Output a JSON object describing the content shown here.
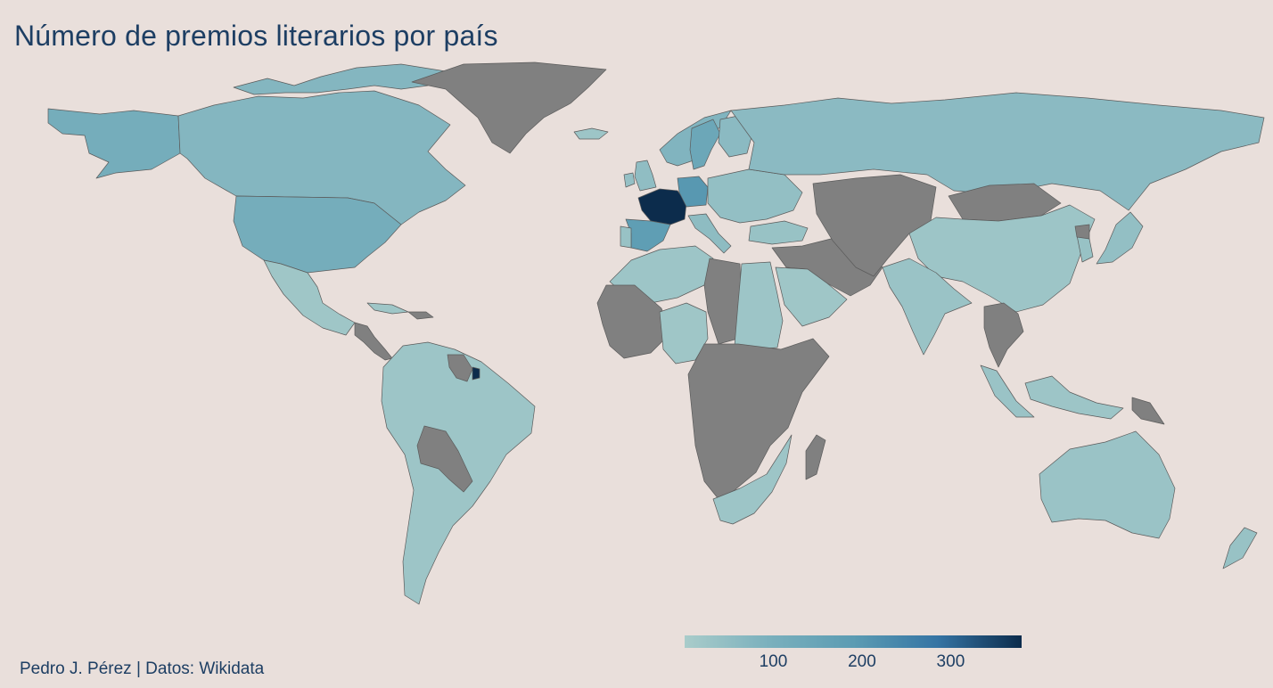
{
  "title": "Número de premios literarios por país",
  "credit": "Pedro J. Pérez | Datos: Wikidata",
  "colors": {
    "background": "#e9dfdb",
    "no_data": "#808080",
    "scale": [
      "#a9ccca",
      "#7ab0bd",
      "#5c9cb3",
      "#3574a4",
      "#0c2c4c"
    ],
    "text": "#1d3e63"
  },
  "legend": {
    "min": 0,
    "max": 380,
    "ticks": [
      {
        "value": 100,
        "label": "100"
      },
      {
        "value": 200,
        "label": "200"
      },
      {
        "value": 300,
        "label": "300"
      }
    ]
  },
  "chart_data": {
    "type": "choropleth",
    "title": "Número de premios literarios por país",
    "color_scale": {
      "min": 0,
      "max": 380,
      "ticks": [
        100,
        200,
        300
      ]
    },
    "no_data_color": "#808080",
    "regions": [
      {
        "id": "alaska",
        "value": 110
      },
      {
        "id": "canada",
        "value": 75
      },
      {
        "id": "canada-islands",
        "value": 75
      },
      {
        "id": "usa",
        "value": 110
      },
      {
        "id": "greenland",
        "value": null
      },
      {
        "id": "iceland",
        "value": 25
      },
      {
        "id": "mexico",
        "value": 20
      },
      {
        "id": "central-america-nodata",
        "value": null
      },
      {
        "id": "cuba",
        "value": 20
      },
      {
        "id": "hispaniola",
        "value": null
      },
      {
        "id": "south-america",
        "value": 25
      },
      {
        "id": "bolivia-paraguay",
        "value": null
      },
      {
        "id": "guyana-suriname",
        "value": null
      },
      {
        "id": "french-guiana",
        "value": 380
      },
      {
        "id": "uk",
        "value": 50
      },
      {
        "id": "ireland",
        "value": 40
      },
      {
        "id": "scandinavia",
        "value": 80
      },
      {
        "id": "sweden",
        "value": 140
      },
      {
        "id": "finland",
        "value": 60
      },
      {
        "id": "france",
        "value": 380
      },
      {
        "id": "spain",
        "value": 180
      },
      {
        "id": "portugal",
        "value": 35
      },
      {
        "id": "germany",
        "value": 200
      },
      {
        "id": "italy",
        "value": 55
      },
      {
        "id": "eastern-europe",
        "value": 45
      },
      {
        "id": "russia",
        "value": 60
      },
      {
        "id": "north-africa",
        "value": 25
      },
      {
        "id": "libya-chad",
        "value": null
      },
      {
        "id": "egypt-sudan",
        "value": 25
      },
      {
        "id": "west-africa-nodata",
        "value": null
      },
      {
        "id": "niger-nigeria",
        "value": 20
      },
      {
        "id": "central-east-africa",
        "value": null
      },
      {
        "id": "southern-africa",
        "value": 25
      },
      {
        "id": "madagascar",
        "value": null
      },
      {
        "id": "middle-east-nodata",
        "value": null
      },
      {
        "id": "turkey",
        "value": 35
      },
      {
        "id": "saudi-arabia",
        "value": 20
      },
      {
        "id": "central-asia-nodata",
        "value": null
      },
      {
        "id": "mongolia",
        "value": null
      },
      {
        "id": "china",
        "value": 25
      },
      {
        "id": "india",
        "value": 30
      },
      {
        "id": "indochina-nodata",
        "value": null
      },
      {
        "id": "southeast-asia",
        "value": 30
      },
      {
        "id": "japan",
        "value": 45
      },
      {
        "id": "korea",
        "value": 35
      },
      {
        "id": "north-korea",
        "value": null
      },
      {
        "id": "australia",
        "value": 30
      },
      {
        "id": "new-zealand",
        "value": 35
      },
      {
        "id": "papua-new-guinea",
        "value": null
      },
      {
        "id": "indonesia",
        "value": 25
      }
    ]
  }
}
